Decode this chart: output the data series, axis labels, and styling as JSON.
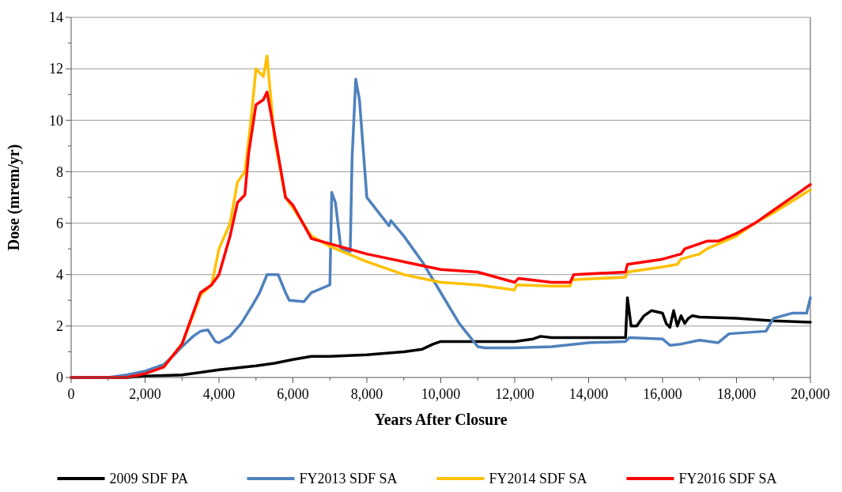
{
  "chart_data": {
    "type": "line",
    "xlabel": "Years After Closure",
    "ylabel": "Dose (mrem/yr)",
    "xlim": [
      0,
      20000
    ],
    "ylim": [
      0,
      14
    ],
    "xticks": [
      {
        "value": 0,
        "label": "0"
      },
      {
        "value": 1000,
        "label": null
      },
      {
        "value": 2000,
        "label": "2,000"
      },
      {
        "value": 3000,
        "label": null
      },
      {
        "value": 4000,
        "label": "4,000"
      },
      {
        "value": 5000,
        "label": null
      },
      {
        "value": 6000,
        "label": "6,000"
      },
      {
        "value": 7000,
        "label": null
      },
      {
        "value": 8000,
        "label": "8,000"
      },
      {
        "value": 9000,
        "label": null
      },
      {
        "value": 10000,
        "label": "10,000"
      },
      {
        "value": 11000,
        "label": null
      },
      {
        "value": 12000,
        "label": "12,000"
      },
      {
        "value": 13000,
        "label": null
      },
      {
        "value": 14000,
        "label": "14,000"
      },
      {
        "value": 15000,
        "label": null
      },
      {
        "value": 16000,
        "label": "16,000"
      },
      {
        "value": 17000,
        "label": null
      },
      {
        "value": 18000,
        "label": "18,000"
      },
      {
        "value": 19000,
        "label": null
      },
      {
        "value": 20000,
        "label": "20,000"
      }
    ],
    "yticks": [
      0,
      {
        "value": 1,
        "label": null
      },
      2,
      {
        "value": 3,
        "label": null
      },
      4,
      {
        "value": 5,
        "label": null
      },
      6,
      {
        "value": 7,
        "label": null
      },
      8,
      {
        "value": 9,
        "label": null
      },
      10,
      {
        "value": 11,
        "label": null
      },
      12,
      {
        "value": 13,
        "label": null
      },
      14
    ],
    "grid": "y",
    "legend": "bottom",
    "marker": "none",
    "line_style": "solid",
    "series": [
      {
        "name": "2009 SDF PA",
        "color": "#000000",
        "x": [
          0,
          1500,
          2000,
          3000,
          4000,
          5000,
          5500,
          6000,
          6500,
          7000,
          7500,
          8000,
          9000,
          9500,
          9800,
          10000,
          12000,
          12500,
          12700,
          13000,
          15000,
          15050,
          15150,
          15300,
          15500,
          15700,
          16000,
          16100,
          16200,
          16300,
          16400,
          16500,
          16600,
          16700,
          16800,
          17000,
          18000,
          19000,
          20000
        ],
        "values": [
          0,
          0,
          0.05,
          0.1,
          0.3,
          0.45,
          0.55,
          0.7,
          0.82,
          0.82,
          0.85,
          0.88,
          1.0,
          1.1,
          1.3,
          1.4,
          1.4,
          1.5,
          1.6,
          1.55,
          1.55,
          3.1,
          2.0,
          2.0,
          2.4,
          2.6,
          2.5,
          2.1,
          1.95,
          2.6,
          2.0,
          2.4,
          2.1,
          2.3,
          2.4,
          2.35,
          2.3,
          2.2,
          2.15
        ]
      },
      {
        "name": "FY2013 SDF SA",
        "color": "#4f81bd",
        "x": [
          0,
          1000,
          1500,
          2000,
          2500,
          2800,
          3000,
          3300,
          3500,
          3700,
          3900,
          4000,
          4300,
          4600,
          4900,
          5100,
          5300,
          5450,
          5600,
          5800,
          5900,
          6300,
          6500,
          7000,
          7050,
          7150,
          7300,
          7550,
          7600,
          7700,
          7800,
          8000,
          8600,
          8650,
          9000,
          9500,
          10000,
          10500,
          11000,
          11200,
          12000,
          13000,
          14000,
          15000,
          15100,
          16000,
          16200,
          16500,
          17000,
          17500,
          17800,
          18800,
          19000,
          19500,
          19900,
          20000
        ],
        "values": [
          0,
          0,
          0.1,
          0.25,
          0.5,
          0.9,
          1.2,
          1.6,
          1.8,
          1.85,
          1.4,
          1.35,
          1.6,
          2.1,
          2.8,
          3.3,
          4.0,
          4.0,
          4.0,
          3.3,
          3.0,
          2.95,
          3.3,
          3.6,
          7.2,
          6.8,
          5.0,
          4.9,
          8.5,
          11.6,
          10.8,
          7.0,
          5.9,
          6.1,
          5.5,
          4.5,
          3.3,
          2.1,
          1.2,
          1.15,
          1.15,
          1.2,
          1.35,
          1.4,
          1.55,
          1.5,
          1.25,
          1.3,
          1.45,
          1.35,
          1.7,
          1.8,
          2.3,
          2.5,
          2.5,
          3.1
        ]
      },
      {
        "name": "FY2014 SDF SA",
        "color": "#ffc000",
        "x": [
          2500,
          3000,
          3500,
          3800,
          4000,
          4300,
          4500,
          4700,
          4850,
          5000,
          5200,
          5300,
          5500,
          5800,
          6000,
          6500,
          7000,
          7500,
          8000,
          9000,
          10000,
          11000,
          12000,
          12050,
          13000,
          13500,
          13550,
          15000,
          15050,
          16000,
          16400,
          16500,
          17000,
          17200,
          18000,
          18500,
          19000,
          20000
        ],
        "values": [
          0.4,
          1.3,
          3.2,
          3.6,
          5.0,
          6.0,
          7.6,
          8.0,
          9.8,
          12.0,
          11.7,
          12.5,
          9.3,
          7.0,
          6.6,
          5.5,
          5.1,
          4.8,
          4.5,
          4.0,
          3.7,
          3.6,
          3.4,
          3.6,
          3.55,
          3.55,
          3.8,
          3.9,
          4.1,
          4.3,
          4.4,
          4.6,
          4.8,
          5.0,
          5.5,
          6.0,
          6.4,
          7.3
        ]
      },
      {
        "name": "FY2016 SDF SA",
        "color": "#ff0000",
        "x": [
          0,
          1500,
          2000,
          2500,
          3000,
          3500,
          3800,
          4000,
          4300,
          4500,
          4700,
          4800,
          5000,
          5200,
          5300,
          5500,
          5800,
          6000,
          6500,
          7000,
          8000,
          9000,
          10000,
          11000,
          12000,
          12100,
          13000,
          13500,
          13600,
          15000,
          15050,
          16000,
          16500,
          16600,
          17200,
          17500,
          18000,
          18500,
          19000,
          20000
        ],
        "values": [
          0,
          0,
          0.15,
          0.4,
          1.3,
          3.3,
          3.6,
          4.0,
          5.5,
          6.8,
          7.1,
          8.7,
          10.6,
          10.8,
          11.1,
          9.5,
          7.0,
          6.7,
          5.4,
          5.2,
          4.8,
          4.5,
          4.2,
          4.1,
          3.7,
          3.85,
          3.7,
          3.7,
          4.0,
          4.1,
          4.4,
          4.6,
          4.8,
          5.0,
          5.3,
          5.3,
          5.6,
          6.0,
          6.5,
          7.5
        ]
      }
    ]
  }
}
